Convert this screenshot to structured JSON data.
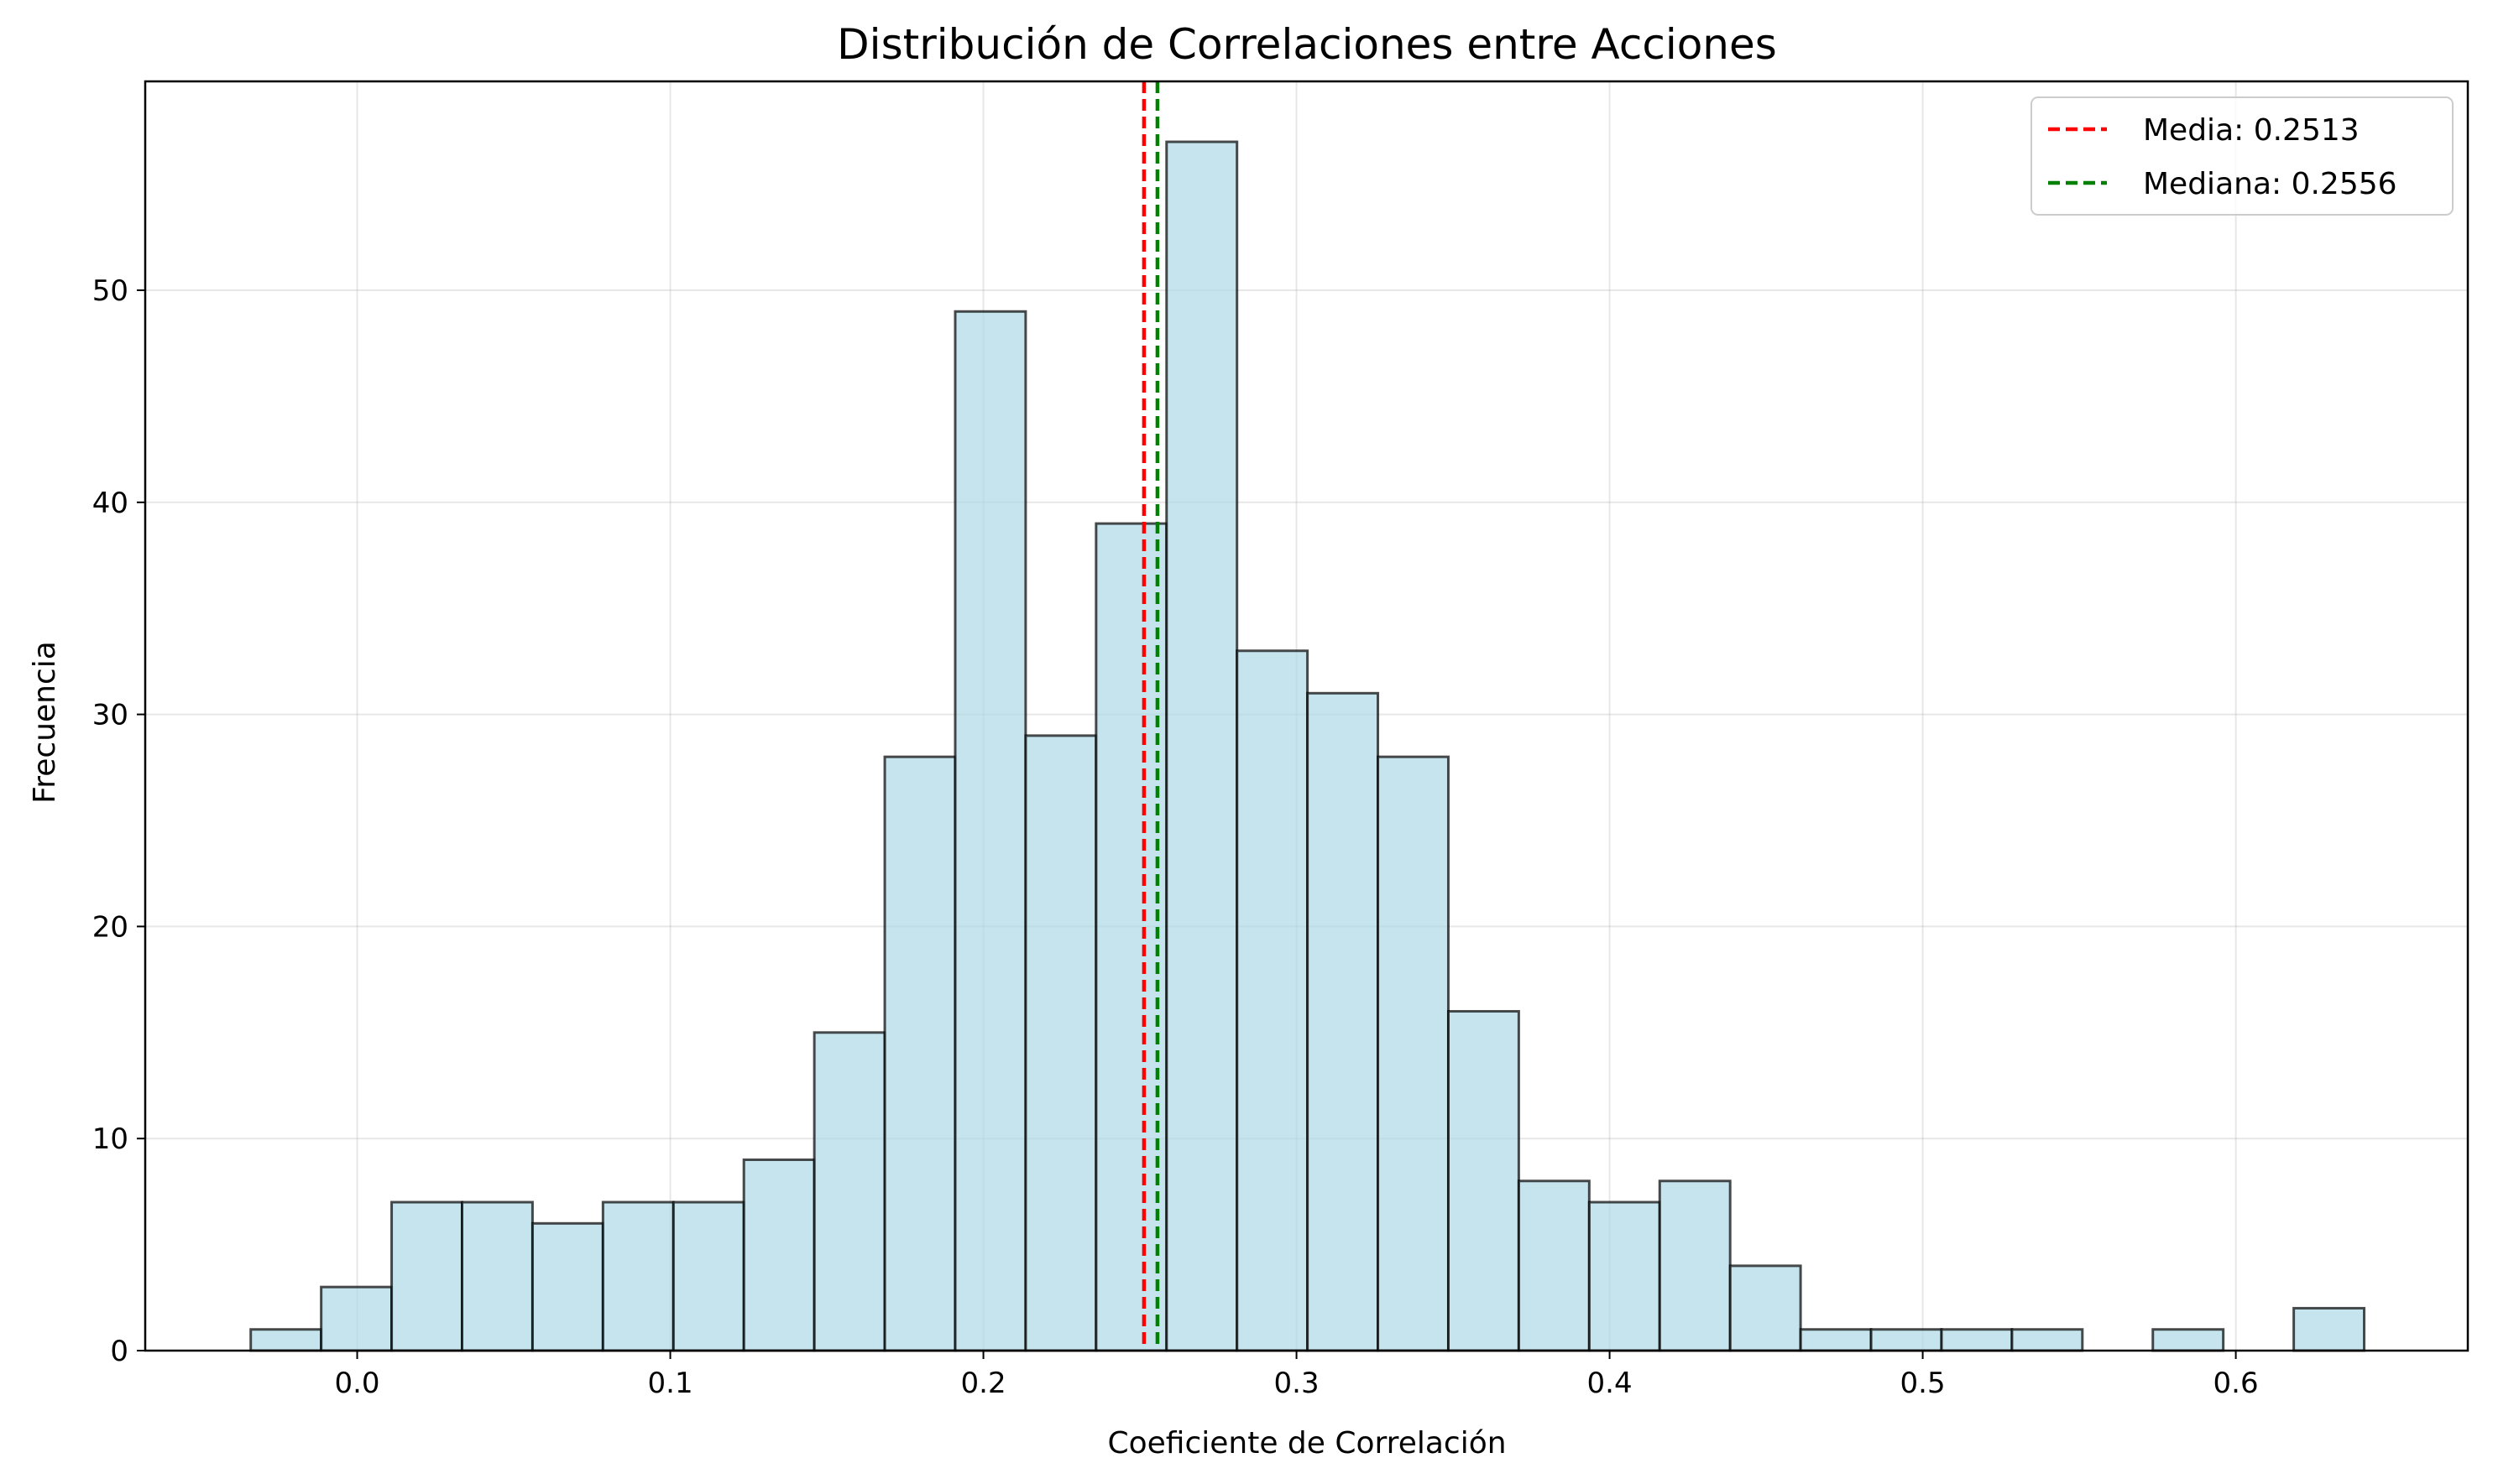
{
  "chart_data": {
    "type": "bar",
    "title": "Distribución de Correlaciones entre Acciones",
    "xlabel": "Coeficiente de Correlación",
    "ylabel": "Frecuencia",
    "xlim": [
      -0.0677,
      0.6741
    ],
    "ylim": [
      0,
      59.85
    ],
    "xticks": [
      "0.0",
      "0.1",
      "0.2",
      "0.3",
      "0.4",
      "0.5",
      "0.6"
    ],
    "yticks": [
      "0",
      "10",
      "20",
      "30",
      "40",
      "50"
    ],
    "grid": true,
    "legend_position": "top-right",
    "bin_edges": [
      -0.034,
      -0.0115,
      0.011,
      0.0335,
      0.056,
      0.0785,
      0.101,
      0.1235,
      0.146,
      0.1685,
      0.191,
      0.2135,
      0.236,
      0.2585,
      0.281,
      0.3035,
      0.326,
      0.3485,
      0.371,
      0.3935,
      0.416,
      0.4385,
      0.461,
      0.4835,
      0.506,
      0.5285,
      0.551,
      0.5735,
      0.596,
      0.6185,
      0.641
    ],
    "counts": [
      1,
      3,
      7,
      7,
      6,
      7,
      7,
      9,
      15,
      28,
      49,
      29,
      39,
      57,
      33,
      31,
      28,
      16,
      8,
      7,
      8,
      4,
      1,
      1,
      1,
      1,
      0,
      1,
      0,
      2
    ],
    "bar_fill": "#add8e6",
    "bar_edge": "#000000",
    "reference_lines": [
      {
        "name": "Media",
        "label": "Media: 0.2513",
        "x": 0.2513,
        "color": "#ff0000"
      },
      {
        "name": "Mediana",
        "label": "Mediana: 0.2556",
        "x": 0.2556,
        "color": "#008000"
      }
    ]
  }
}
